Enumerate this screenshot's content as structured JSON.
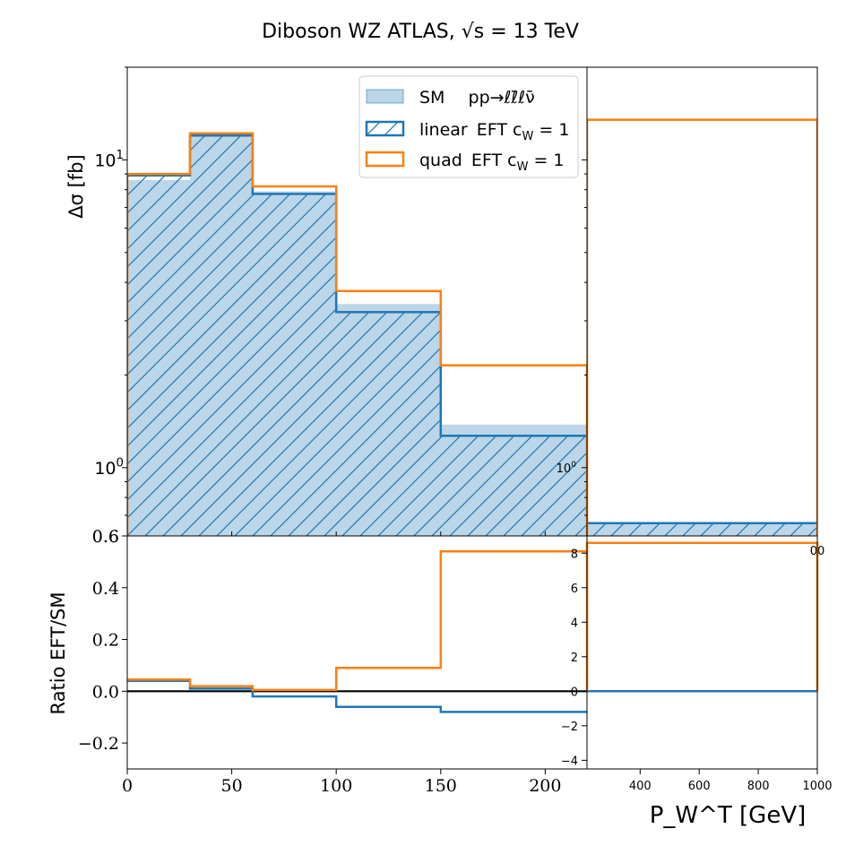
{
  "chart_data": {
    "type": "histogram",
    "title": "Diboson  WZ ATLAS,  √s = 13 TeV",
    "xlabel": "P_W^T [GeV]",
    "ylabel_top": "Δσ [fb]",
    "ylabel_bottom": "Ratio EFT/SM",
    "bin_edges": [
      0,
      30,
      60,
      100,
      150,
      220,
      1000
    ],
    "legend": {
      "placement": "top-right",
      "entries": [
        {
          "series": "SM",
          "label_prefix": "SM",
          "label_main": "pp→ℓℓ̄ℓν̄"
        },
        {
          "series": "linear",
          "label_prefix": "linear",
          "label_main": "EFT c",
          "label_sub": "W",
          "label_tail": " = 1"
        },
        {
          "series": "quad",
          "label_prefix": "quad",
          "label_main": "EFT c",
          "label_sub": "W",
          "label_tail": " = 1"
        }
      ]
    },
    "series": [
      {
        "name": "SM pp→ℓℓ̄ℓν̄",
        "key": "SM",
        "color": "#1f77b4",
        "style": "filled",
        "values": [
          8.6,
          11.9,
          7.9,
          3.4,
          1.38,
          0.66
        ]
      },
      {
        "name": "linear EFT cW = 1",
        "key": "linear",
        "color": "#1f77b4",
        "style": "hatched",
        "values": [
          8.9,
          12.0,
          7.75,
          3.2,
          1.27,
          0.66
        ]
      },
      {
        "name": "quad EFT cW = 1",
        "key": "quad",
        "color": "#ff7f0e",
        "style": "step",
        "values": [
          9.0,
          12.2,
          8.2,
          3.75,
          2.15,
          13.5
        ]
      }
    ],
    "ratio_series": [
      {
        "key": "linear",
        "color": "#1f77b4",
        "values": [
          0.04,
          0.01,
          -0.02,
          -0.06,
          -0.08,
          0.0
        ]
      },
      {
        "key": "quad",
        "color": "#ff7f0e",
        "values": [
          0.045,
          0.02,
          0.005,
          0.09,
          0.54,
          8.6
        ]
      }
    ],
    "main_left": {
      "xlim": [
        0,
        220
      ],
      "ylim": [
        0.6,
        20
      ],
      "yscale": "log",
      "xticks": [
        0,
        50,
        100,
        150,
        200
      ],
      "ytick_labels": [
        "10^0",
        "10^1",
        "0.6"
      ]
    },
    "main_right": {
      "xlim": [
        220,
        1000
      ],
      "ylim": [
        0.6,
        20
      ],
      "yscale": "log",
      "xticks": [
        400,
        600,
        800,
        1000
      ],
      "ytick_labels": [
        "10^0"
      ],
      "partial_tick_label": "00"
    },
    "ratio_left": {
      "xlim": [
        0,
        220
      ],
      "ylim": [
        -0.3,
        0.6
      ],
      "yticks": [
        -0.2,
        0.0,
        0.2,
        0.4,
        0.6
      ],
      "ytick_labels": [
        "−0.2",
        "0.0",
        "0.2",
        "0.4",
        "0.6"
      ]
    },
    "ratio_right": {
      "xlim": [
        220,
        1000
      ],
      "ylim": [
        -4.5,
        9
      ],
      "yticks": [
        -4,
        -2,
        0,
        2,
        4,
        6,
        8
      ],
      "ytick_labels": [
        "−4",
        "−2",
        "0",
        "2",
        "4",
        "6",
        "8"
      ]
    }
  }
}
